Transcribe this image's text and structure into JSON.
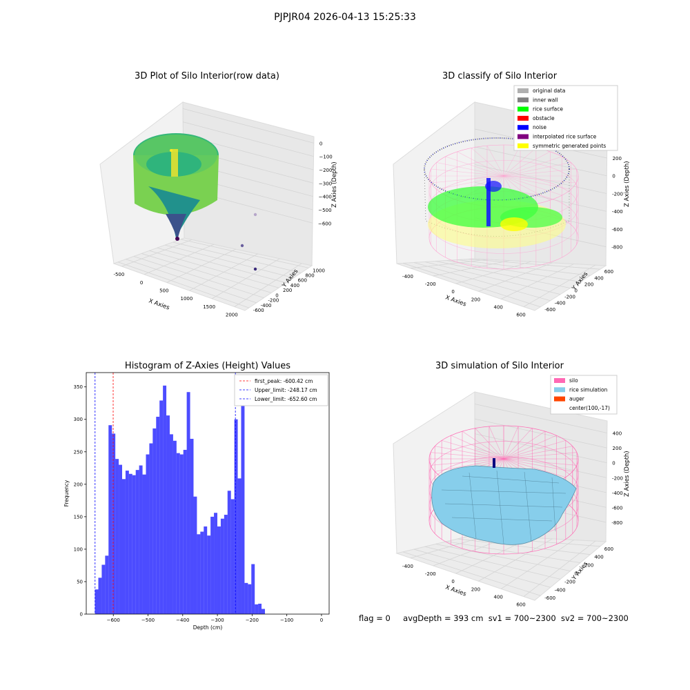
{
  "suptitle": "PJPJR04 2026-04-13 15:25:33",
  "footer": {
    "flag": "flag = 0",
    "avg_depth": "avgDepth = 393 cm",
    "sv1": "sv1 = 700~2300",
    "sv2": "sv2 = 700~2300"
  },
  "panels": {
    "raw": {
      "title": "3D Plot of Silo Interior(row data)",
      "x_label": "X Axies",
      "y_label": "Y Axies",
      "z_label": "Z Axies (Depth)",
      "x_ticks": [
        "-500",
        "0",
        "500",
        "1000",
        "1500",
        "2000"
      ],
      "y_ticks": [
        "-600",
        "-400",
        "-200",
        "0",
        "200",
        "400",
        "600",
        "800",
        "1000"
      ],
      "z_ticks": [
        "0",
        "−100",
        "−200",
        "−300",
        "−400",
        "−500",
        "−600"
      ]
    },
    "classify": {
      "title": "3D classify of Silo Interior",
      "x_label": "X Axies",
      "y_label": "Y Axies",
      "z_label": "Z Axies (Depth)",
      "x_ticks": [
        "-400",
        "-200",
        "0",
        "200",
        "400",
        "600"
      ],
      "y_ticks": [
        "-600",
        "-400",
        "-200",
        "0",
        "200",
        "400",
        "600"
      ],
      "z_ticks": [
        "200",
        "0",
        "-200",
        "-400",
        "-600",
        "-800"
      ],
      "z_top_partial": "00",
      "legend": [
        {
          "label": "original data",
          "color": "#b0b0b0"
        },
        {
          "label": "inner wall",
          "color": "#808080"
        },
        {
          "label": "rice surface",
          "color": "#00ff00"
        },
        {
          "label": "obstacle",
          "color": "#ff0000"
        },
        {
          "label": "noise",
          "color": "#0000ff"
        },
        {
          "label": "interpolated rice surface",
          "color": "#800080"
        },
        {
          "label": "symmetric generated points",
          "color": "#ffff00"
        }
      ]
    },
    "histogram": {
      "title": "Histogram of Z-Axies (Height) Values",
      "legend": [
        {
          "label": "first_peak: -600.42 cm",
          "color": "#ff0000"
        },
        {
          "label": "Upper_limit: -248.17 cm",
          "color": "#0000ff"
        },
        {
          "label": "Lower_limit: -652.60 cm",
          "color": "#0000ff"
        }
      ]
    },
    "simulation": {
      "title": "3D simulation of Silo Interior",
      "x_label": "X Axies",
      "y_label": "Y Axies",
      "z_label": "Z Axies (Depth)",
      "x_ticks": [
        "-400",
        "-200",
        "0",
        "200",
        "400",
        "600"
      ],
      "y_ticks": [
        "-600",
        "-400",
        "-200",
        "0",
        "200",
        "400",
        "600"
      ],
      "z_ticks": [
        "400",
        "200",
        "0",
        "-200",
        "-400",
        "-600",
        "-800"
      ],
      "legend": [
        {
          "label": "silo",
          "color": "#ff69b4"
        },
        {
          "label": "rice simulation",
          "color": "#87ceeb"
        },
        {
          "label": "auger",
          "color": "#ff4500"
        },
        {
          "label": "center(100,-17)",
          "color": "none"
        }
      ]
    }
  },
  "chart_data": [
    {
      "type": "bar",
      "title": "Histogram of Z-Axies (Height) Values",
      "xlabel": "Depth (cm)",
      "ylabel": "Frequency",
      "xlim": [
        -678,
        22
      ],
      "ylim": [
        0,
        372
      ],
      "x_ticks": [
        -600,
        -500,
        -400,
        -300,
        -200,
        -100,
        0
      ],
      "y_ticks": [
        0,
        50,
        100,
        150,
        200,
        250,
        300,
        350
      ],
      "bar_color": "#0000ff",
      "bin_start": -653,
      "bin_width": 9.8,
      "values": [
        38,
        56,
        76,
        90,
        291,
        278,
        239,
        230,
        208,
        221,
        216,
        214,
        222,
        229,
        215,
        246,
        263,
        286,
        304,
        329,
        352,
        306,
        277,
        267,
        248,
        246,
        253,
        342,
        270,
        181,
        123,
        127,
        135,
        121,
        150,
        156,
        135,
        147,
        153,
        190,
        177,
        300,
        209,
        340,
        48,
        46,
        77,
        15,
        16,
        8
      ],
      "vlines": [
        {
          "x": -600.42,
          "color": "#ff0000",
          "label": "first_peak: -600.42 cm"
        },
        {
          "x": -248.17,
          "color": "#0000ff",
          "label": "Upper_limit: -248.17 cm"
        },
        {
          "x": -652.6,
          "color": "#0000ff",
          "label": "Lower_limit: -652.60 cm"
        }
      ],
      "legend_position": "top-right"
    }
  ]
}
